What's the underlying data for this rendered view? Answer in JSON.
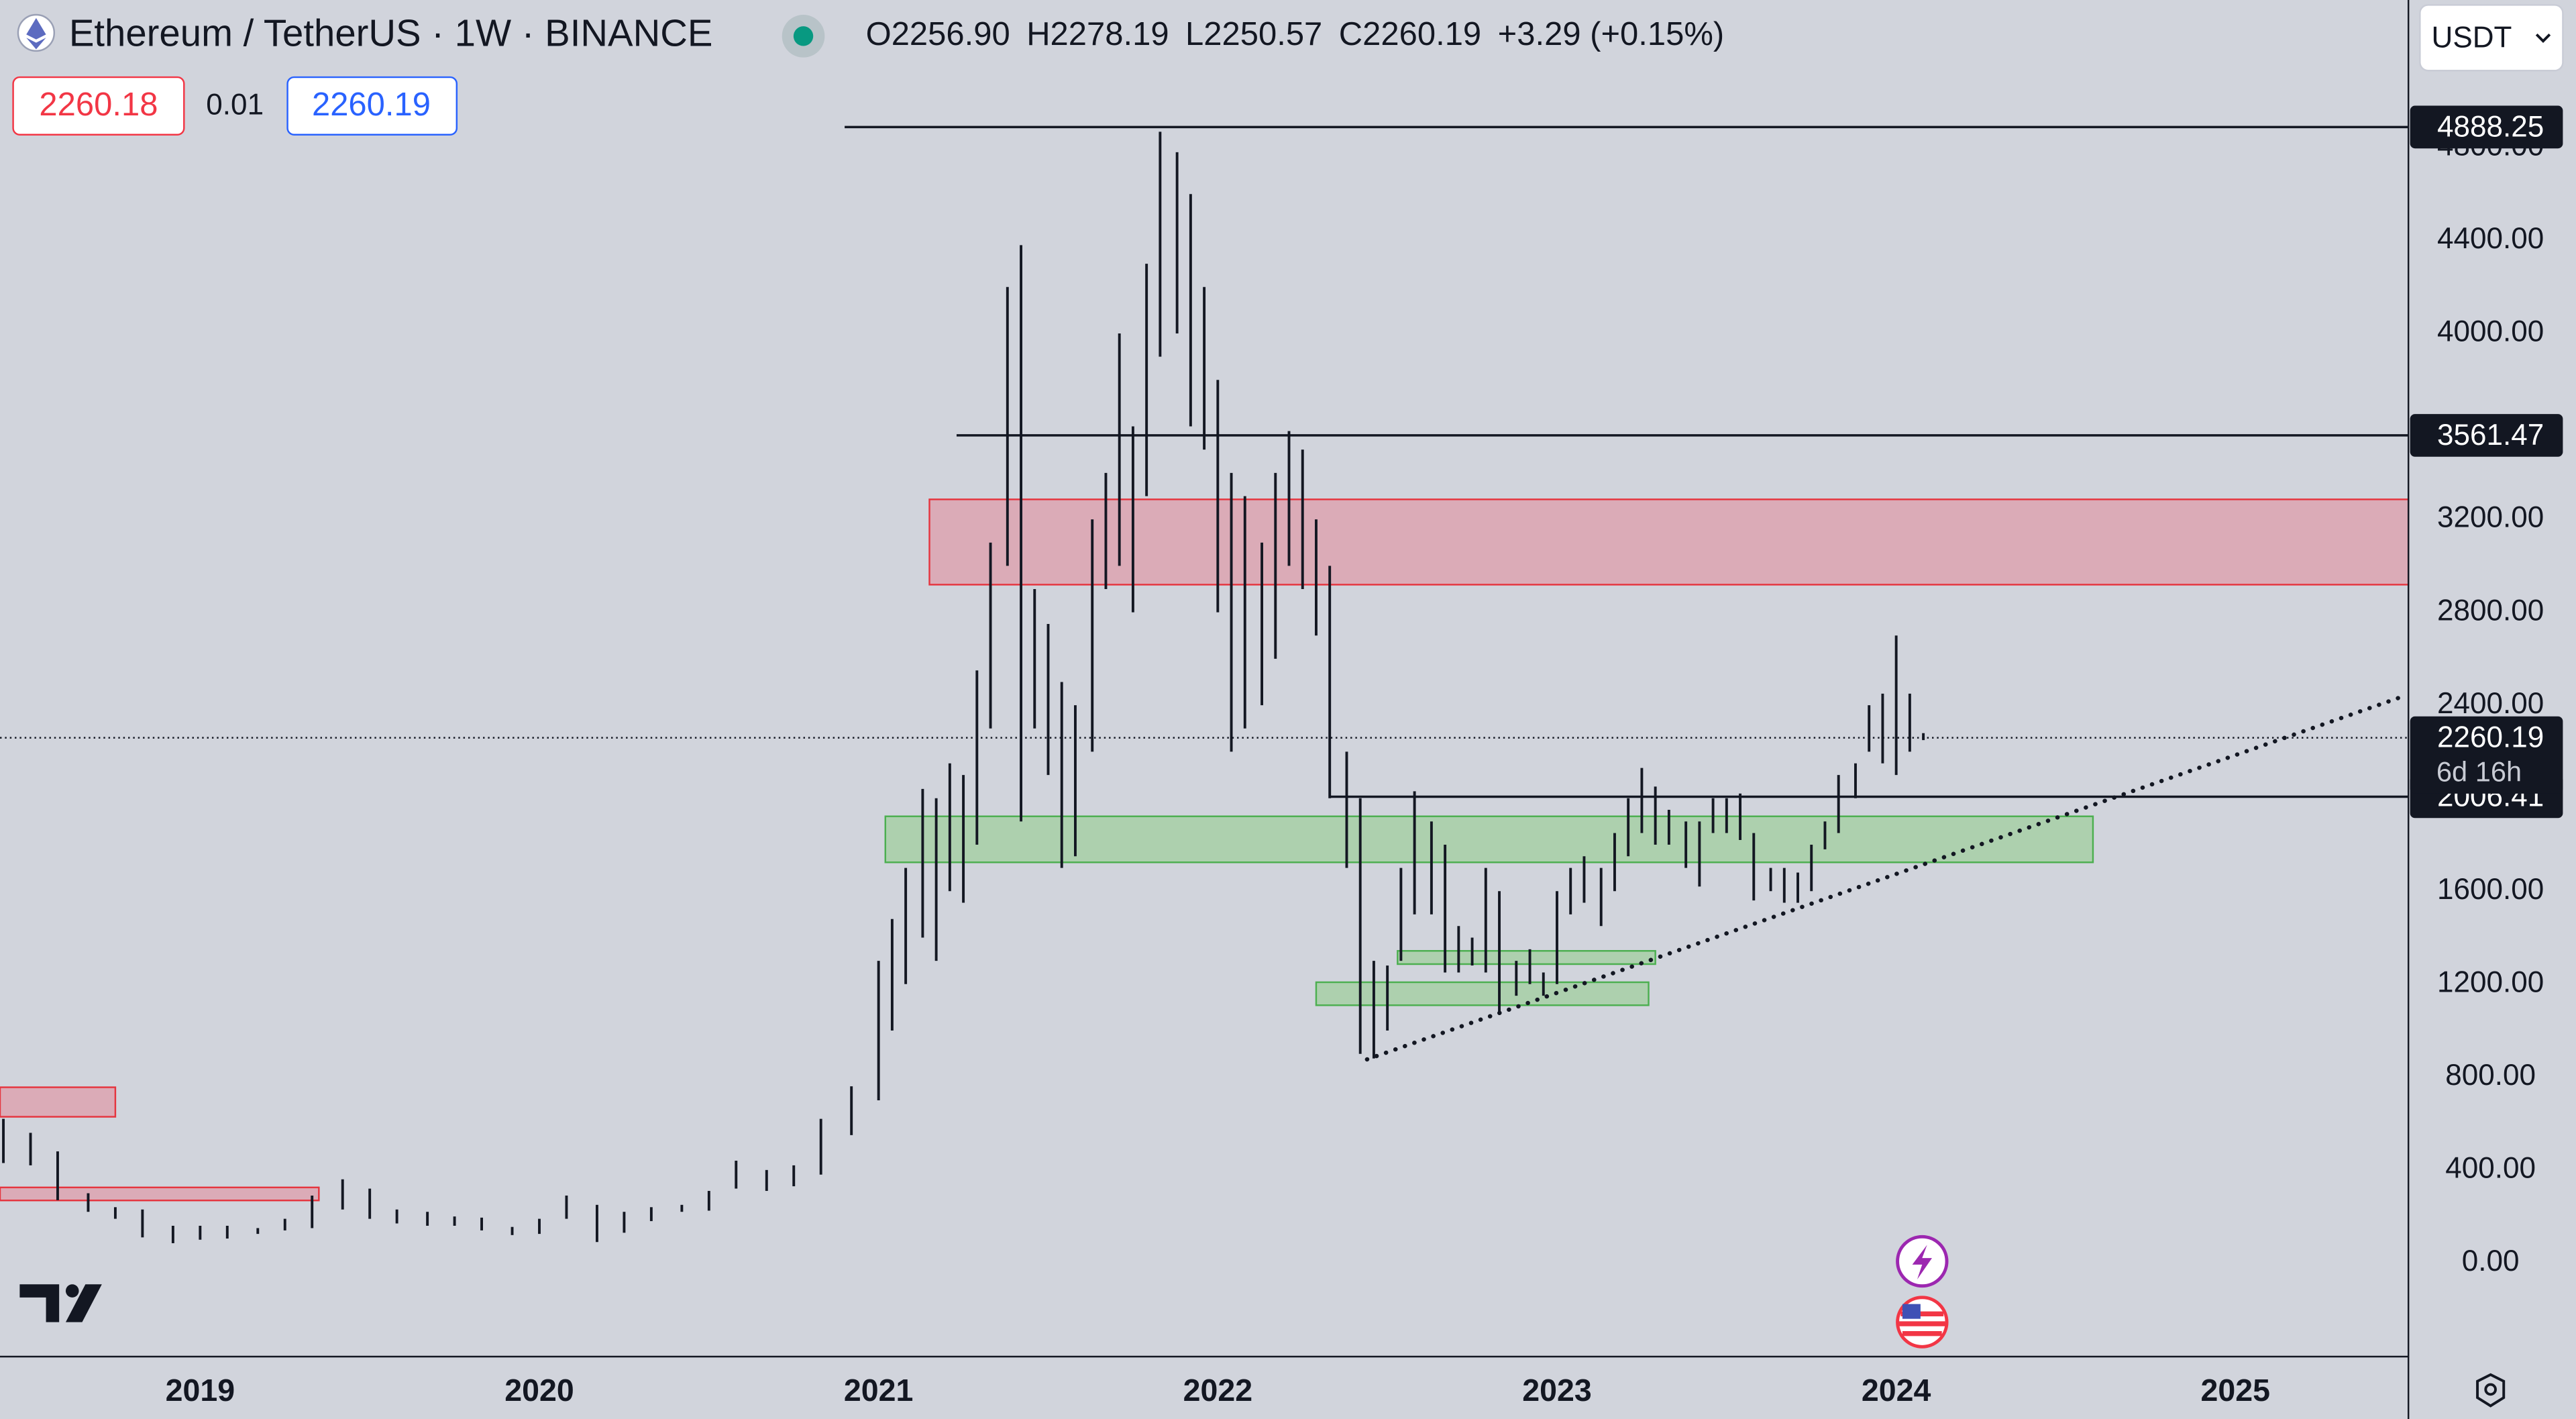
{
  "header": {
    "symbol": "Ethereum / TetherUS · 1W · BINANCE",
    "ohlc": [
      {
        "label": "O",
        "value": "2256.90"
      },
      {
        "label": "H",
        "value": "2278.19"
      },
      {
        "label": "L",
        "value": "2250.57"
      },
      {
        "label": "C",
        "value": "2260.19"
      }
    ],
    "change": "+3.29 (+0.15%)",
    "bid": "2260.18",
    "spread": "0.01",
    "ask": "2260.19",
    "currency": "USDT"
  },
  "chart_data": {
    "type": "ohlc",
    "color": "#131722",
    "x": [
      2018.42,
      2018.5,
      2018.58,
      2018.67,
      2018.75,
      2018.83,
      2018.92,
      2019.0,
      2019.08,
      2019.17,
      2019.25,
      2019.33,
      2019.42,
      2019.5,
      2019.58,
      2019.67,
      2019.75,
      2019.83,
      2019.92,
      2020.0,
      2020.08,
      2020.17,
      2020.25,
      2020.33,
      2020.42,
      2020.5,
      2020.58,
      2020.67,
      2020.75,
      2020.83,
      2020.92,
      2021.0,
      2021.04,
      2021.08,
      2021.13,
      2021.17,
      2021.21,
      2021.25,
      2021.29,
      2021.33,
      2021.38,
      2021.42,
      2021.46,
      2021.5,
      2021.54,
      2021.58,
      2021.63,
      2021.67,
      2021.71,
      2021.75,
      2021.79,
      2021.83,
      2021.88,
      2021.92,
      2021.96,
      2022.0,
      2022.04,
      2022.08,
      2022.13,
      2022.17,
      2022.21,
      2022.25,
      2022.29,
      2022.33,
      2022.38,
      2022.42,
      2022.46,
      2022.5,
      2022.54,
      2022.58,
      2022.63,
      2022.67,
      2022.71,
      2022.75,
      2022.79,
      2022.83,
      2022.88,
      2022.92,
      2022.96,
      2023.0,
      2023.04,
      2023.08,
      2023.13,
      2023.17,
      2023.21,
      2023.25,
      2023.29,
      2023.33,
      2023.38,
      2023.42,
      2023.46,
      2023.5,
      2023.54,
      2023.58,
      2023.63,
      2023.67,
      2023.71,
      2023.75,
      2023.79,
      2023.83,
      2023.88,
      2023.92,
      2023.96,
      2024.0,
      2024.04,
      2024.08
    ],
    "high": [
      620,
      560,
      480,
      300,
      240,
      230,
      160,
      160,
      160,
      150,
      190,
      290,
      360,
      320,
      230,
      220,
      200,
      195,
      155,
      190,
      290,
      250,
      220,
      240,
      250,
      310,
      440,
      400,
      420,
      620,
      760,
      1300,
      1480,
      1700,
      2040,
      2000,
      2150,
      2100,
      2550,
      3100,
      4200,
      4380,
      2900,
      2750,
      2500,
      2400,
      3200,
      3400,
      4000,
      3600,
      4300,
      4868,
      4780,
      4600,
      4200,
      3800,
      3400,
      3300,
      3100,
      3400,
      3580,
      3500,
      3200,
      3000,
      2200,
      2000,
      1300,
      1280,
      1700,
      2030,
      1900,
      1800,
      1450,
      1400,
      1700,
      1600,
      1300,
      1350,
      1250,
      1600,
      1700,
      1750,
      1700,
      1850,
      2000,
      2130,
      2050,
      1950,
      1900,
      1900,
      2000,
      2000,
      2020,
      1850,
      1700,
      1700,
      1680,
      1800,
      1900,
      2100,
      2150,
      2400,
      2450,
      2700,
      2450,
      2280
    ],
    "low": [
      430,
      420,
      270,
      220,
      190,
      110,
      85,
      100,
      105,
      125,
      140,
      150,
      230,
      190,
      170,
      160,
      160,
      140,
      120,
      125,
      190,
      90,
      130,
      180,
      220,
      225,
      320,
      310,
      330,
      380,
      550,
      700,
      1000,
      1200,
      1400,
      1300,
      1600,
      1550,
      1800,
      2300,
      3000,
      1900,
      2300,
      2100,
      1700,
      1750,
      2200,
      2900,
      3000,
      2800,
      3300,
      3900,
      4000,
      3600,
      3500,
      2800,
      2200,
      2300,
      2400,
      2600,
      3000,
      2900,
      2700,
      2000,
      1700,
      900,
      880,
      1000,
      1300,
      1500,
      1500,
      1250,
      1250,
      1280,
      1250,
      1070,
      1150,
      1200,
      1150,
      1200,
      1500,
      1550,
      1450,
      1600,
      1750,
      1850,
      1800,
      1800,
      1700,
      1620,
      1850,
      1850,
      1820,
      1560,
      1600,
      1550,
      1550,
      1600,
      1780,
      1850,
      2000,
      2200,
      2150,
      2100,
      2200,
      2250
    ],
    "xlim": [
      2018.41,
      2025.51
    ],
    "xticks": [
      2019,
      2020,
      2021,
      2022,
      2023,
      2024,
      2025
    ],
    "ylim": [
      -403,
      5435
    ],
    "yticks": [
      {
        "value": 0,
        "label": "0.00"
      },
      {
        "value": 400,
        "label": "400.00"
      },
      {
        "value": 800,
        "label": "800.00"
      },
      {
        "value": 1200,
        "label": "1200.00"
      },
      {
        "value": 1600,
        "label": "1600.00"
      },
      {
        "value": 2400,
        "label": "2400.00"
      },
      {
        "value": 2800,
        "label": "2800.00"
      },
      {
        "value": 3200,
        "label": "3200.00"
      },
      {
        "value": 4000,
        "label": "4000.00"
      },
      {
        "value": 4400,
        "label": "4400.00"
      },
      {
        "value": 4800,
        "label": "4800.00"
      }
    ],
    "levels": [
      {
        "value": 4888.25,
        "start": 2020.9
      },
      {
        "value": 3561.47,
        "start": 2021.23
      },
      {
        "value": 2006.41,
        "start": 2022.33
      }
    ],
    "last_price": 2260.19,
    "countdown": "6d 16h",
    "zones": [
      {
        "x": [
          2021.15,
          2025.51
        ],
        "y": [
          2919,
          3286
        ],
        "fill": "#dca6b2",
        "stroke": "#e5353f"
      },
      {
        "x": [
          2021.02,
          2024.58
        ],
        "y": [
          1724,
          1922
        ],
        "fill": "#a9cfa9",
        "stroke": "#4caf50"
      },
      {
        "x": [
          2022.53,
          2023.29
        ],
        "y": [
          1286,
          1343
        ],
        "fill": "#a9cfa9",
        "stroke": "#4caf50"
      },
      {
        "x": [
          2022.29,
          2023.27
        ],
        "y": [
          1109,
          1208
        ],
        "fill": "#a9cfa9",
        "stroke": "#4caf50"
      },
      {
        "x": [
          2018.41,
          2018.75
        ],
        "y": [
          629,
          756
        ],
        "fill": "#dca6b2",
        "stroke": "#e5353f"
      },
      {
        "x": [
          2018.41,
          2019.35
        ],
        "y": [
          269,
          325
        ],
        "fill": "#dca6b2",
        "stroke": "#e5353f"
      }
    ],
    "trendline": {
      "x": [
        2022.44,
        2025.48
      ],
      "y": [
        876,
        2431
      ]
    }
  }
}
